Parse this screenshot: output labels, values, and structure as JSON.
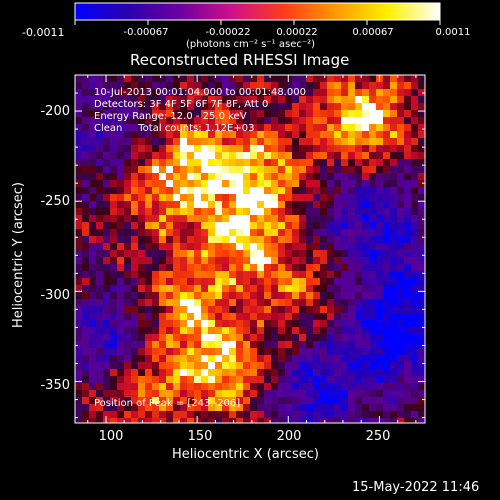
{
  "colorbar": {
    "ticks": [
      "-0.0011",
      "-0.00067",
      "-0.00022",
      "0.00022",
      "0.00067",
      "0.0011"
    ],
    "unit": "(photons cm⁻² s⁻¹ asec⁻²)",
    "colors": [
      "#0000ff",
      "#2a00b0",
      "#6a00a0",
      "#d0108a",
      "#ff3a1a",
      "#ff9a00",
      "#fff000",
      "#ffffff"
    ]
  },
  "plot": {
    "title": "Reconstructed RHESSI Image",
    "annotation": {
      "time": "10-Jul-2013 00:01:04.000 to 00:01:48.000",
      "detectors": "Detectors: 3F 4F 5F 6F 7F 8F, Att 0",
      "energy": "Energy Range: 12.0 - 25.0 keV",
      "clean": "Clean     Total counts: 1.12E+03",
      "peak": "Position of Peak = [243,-206]"
    },
    "xlabel": "Heliocentric X (arcsec)",
    "ylabel": "Heliocentric Y (arcsec)",
    "xticks": [
      "100",
      "150",
      "200",
      "250"
    ],
    "yticks": [
      "-200",
      "-250",
      "-300",
      "-350"
    ]
  },
  "footer": {
    "timestamp": "15-May-2022 11:46"
  },
  "chart_data": {
    "type": "heatmap",
    "title": "Reconstructed RHESSI Image",
    "xlabel": "Heliocentric X (arcsec)",
    "ylabel": "Heliocentric Y (arcsec)",
    "xlim": [
      83,
      275
    ],
    "ylim": [
      -373,
      -180
    ],
    "color_range": [
      -0.0011,
      0.0011
    ],
    "peak": [
      243,
      -206
    ],
    "sources": [
      {
        "x": 240,
        "y": -205,
        "value": 0.0011
      },
      {
        "x": 150,
        "y": -225,
        "value": 0.0008
      },
      {
        "x": 185,
        "y": -235,
        "value": 0.0008
      },
      {
        "x": 175,
        "y": -270,
        "value": 0.0009
      },
      {
        "x": 130,
        "y": -250,
        "value": 0.0006
      },
      {
        "x": 145,
        "y": -310,
        "value": 0.0008
      },
      {
        "x": 165,
        "y": -345,
        "value": 0.0009
      },
      {
        "x": 120,
        "y": -355,
        "value": 0.0006
      },
      {
        "x": 205,
        "y": -300,
        "value": 0.0005
      },
      {
        "x": 245,
        "y": -260,
        "value": -0.0009
      },
      {
        "x": 255,
        "y": -330,
        "value": -0.001
      },
      {
        "x": 100,
        "y": -325,
        "value": -0.0008
      },
      {
        "x": 215,
        "y": -355,
        "value": -0.0009
      },
      {
        "x": 95,
        "y": -215,
        "value": -0.0005
      },
      {
        "x": 265,
        "y": -300,
        "value": -0.0008
      }
    ]
  }
}
